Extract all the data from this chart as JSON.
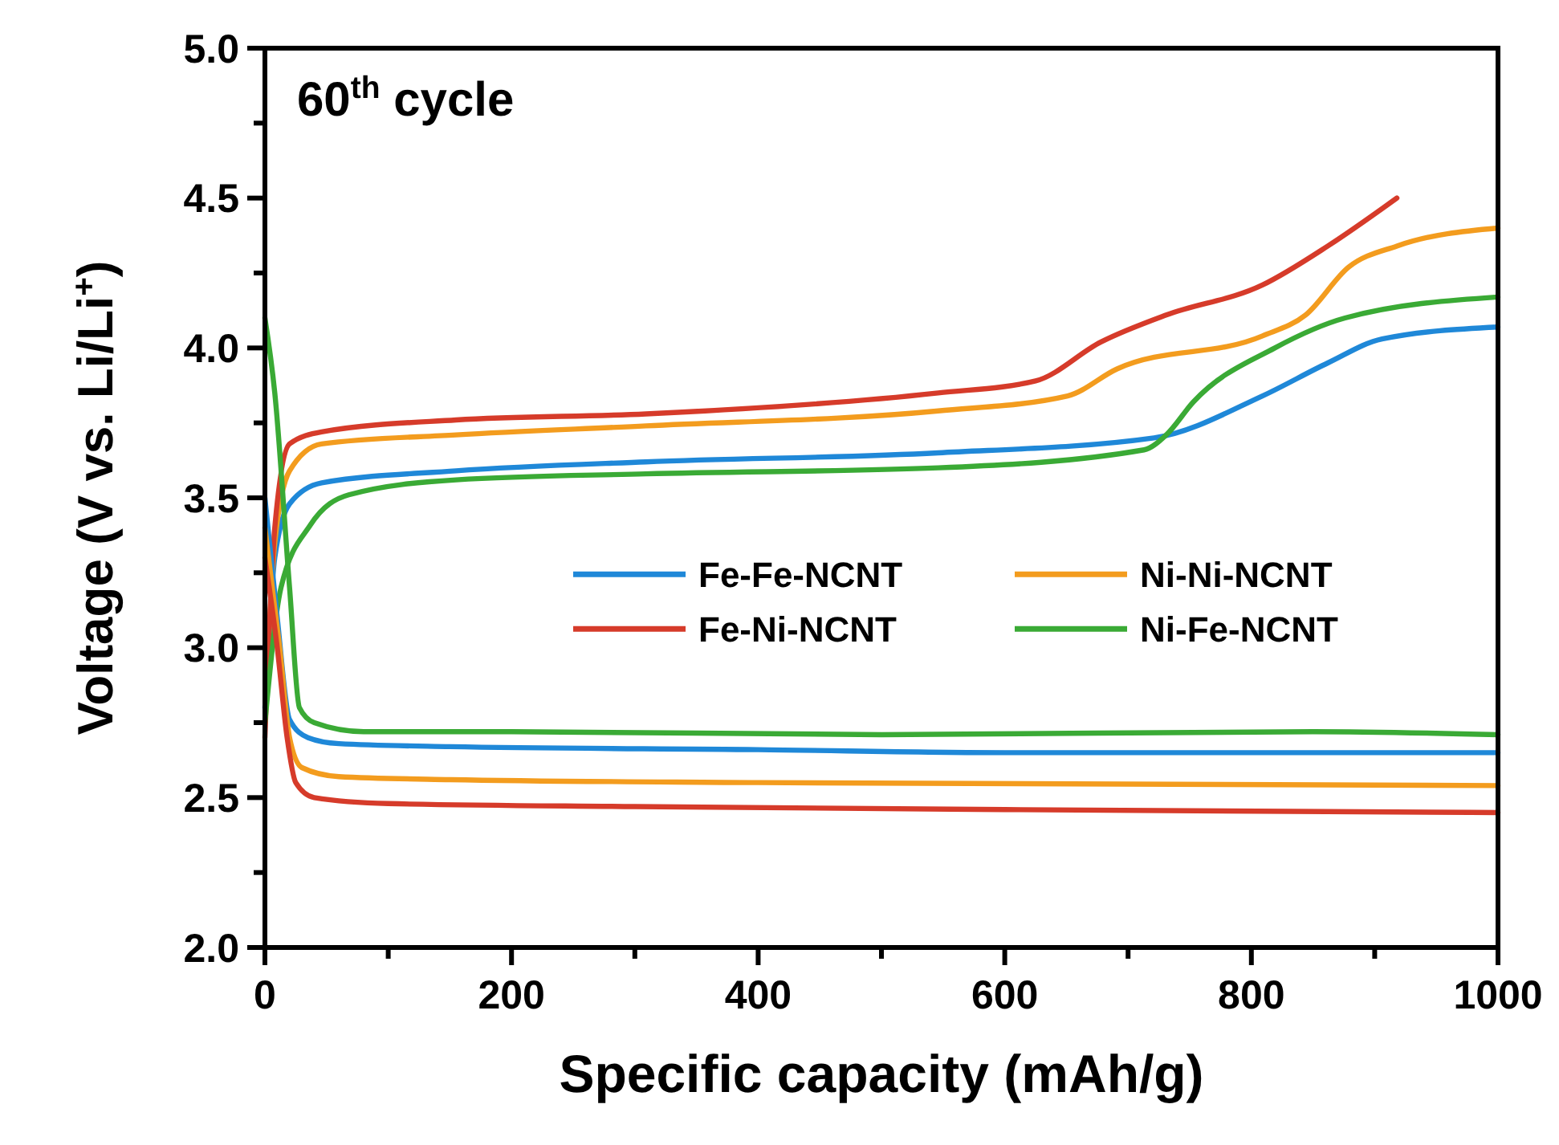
{
  "chart_data": {
    "type": "line",
    "title": "60$^{th}$ cycle",
    "xlabel": "Specific capacity (mAh/g)",
    "ylabel": "Voltage (V vs. Li/Li$^{+}$)",
    "xlim": [
      0,
      1000
    ],
    "ylim": [
      2.0,
      5.0
    ],
    "xticks": [
      0,
      {
        "value": 100,
        "label": null
      },
      200,
      {
        "value": 300,
        "label": null
      },
      400,
      {
        "value": 500,
        "label": null
      },
      600,
      {
        "value": 700,
        "label": null
      },
      800,
      {
        "value": 900,
        "label": null
      },
      1000
    ],
    "yticks": [
      {
        "value": 2.0,
        "label": "2.0"
      },
      {
        "value": 2.25,
        "label": null
      },
      2.5,
      {
        "value": 2.75,
        "label": null
      },
      {
        "value": 3.0,
        "label": "3.0"
      },
      {
        "value": 3.25,
        "label": null
      },
      3.5,
      {
        "value": 3.75,
        "label": null
      },
      {
        "value": 4.0,
        "label": "4.0"
      },
      {
        "value": 4.25,
        "label": null
      },
      4.5,
      {
        "value": 4.75,
        "label": null
      },
      {
        "value": 5.0,
        "label": "5.0"
      }
    ],
    "grid": false,
    "legend": "right",
    "marker": "none",
    "line_style": "solid",
    "series": [
      {
        "name": "Fe-Fe-NCNT",
        "color": "#1f88d8",
        "x": [
          0,
          8,
          20,
          46,
          155,
          309,
          546,
          721,
          809,
          862,
          906,
          1000
        ],
        "values": [
          2.8,
          3.3,
          3.48,
          3.55,
          3.59,
          3.62,
          3.65,
          3.7,
          3.84,
          3.95,
          4.03,
          4.07
        ]
      },
      {
        "name": "Ni-Ni-NCNT",
        "color": "#f39c1e",
        "x": [
          0,
          8,
          20,
          46,
          155,
          309,
          546,
          651,
          691,
          809,
          844,
          879,
          918,
          1000
        ],
        "values": [
          2.75,
          3.35,
          3.59,
          3.68,
          3.71,
          3.74,
          3.79,
          3.84,
          3.93,
          4.04,
          4.11,
          4.27,
          4.34,
          4.4
        ]
      },
      {
        "name": "Fe-Ni-NCNT",
        "color": "#d63b2a",
        "x": [
          0,
          8,
          20,
          46,
          155,
          309,
          546,
          625,
          678,
          731,
          809,
          862,
          918
        ],
        "values": [
          2.7,
          3.4,
          3.68,
          3.72,
          3.76,
          3.78,
          3.85,
          3.89,
          4.02,
          4.11,
          4.21,
          4.34,
          4.5
        ]
      },
      {
        "name": "Ni-Fe-NCNT",
        "color": "#3aaa35",
        "x": [
          0,
          13,
          37,
          68,
          155,
          309,
          546,
          713,
          731,
          753,
          819,
          876,
          1000
        ],
        "values": [
          2.75,
          3.2,
          3.41,
          3.51,
          3.56,
          3.58,
          3.6,
          3.66,
          3.71,
          3.82,
          4.0,
          4.1,
          4.17
        ]
      },
      {
        "color": "#1f88d8",
        "x": [
          0,
          10,
          20,
          35,
          60,
          150,
          400,
          600,
          1000
        ],
        "values": [
          3.5,
          3.1,
          2.76,
          2.7,
          2.68,
          2.67,
          2.66,
          2.65,
          2.65
        ]
      },
      {
        "color": "#f39c1e",
        "x": [
          0,
          12,
          20,
          30,
          60,
          150,
          400,
          1000
        ],
        "values": [
          3.4,
          3.0,
          2.7,
          2.6,
          2.57,
          2.56,
          2.55,
          2.54
        ]
      },
      {
        "color": "#d63b2a",
        "x": [
          0,
          10,
          18,
          25,
          40,
          100,
          300,
          600,
          1000
        ],
        "values": [
          3.3,
          3.0,
          2.7,
          2.55,
          2.5,
          2.48,
          2.47,
          2.46,
          2.45
        ]
      },
      {
        "color": "#3aaa35",
        "x": [
          0,
          8,
          20,
          28,
          40,
          80,
          200,
          500,
          850,
          1000
        ],
        "values": [
          4.1,
          3.85,
          3.2,
          2.8,
          2.75,
          2.72,
          2.72,
          2.71,
          2.72,
          2.71
        ]
      }
    ]
  }
}
